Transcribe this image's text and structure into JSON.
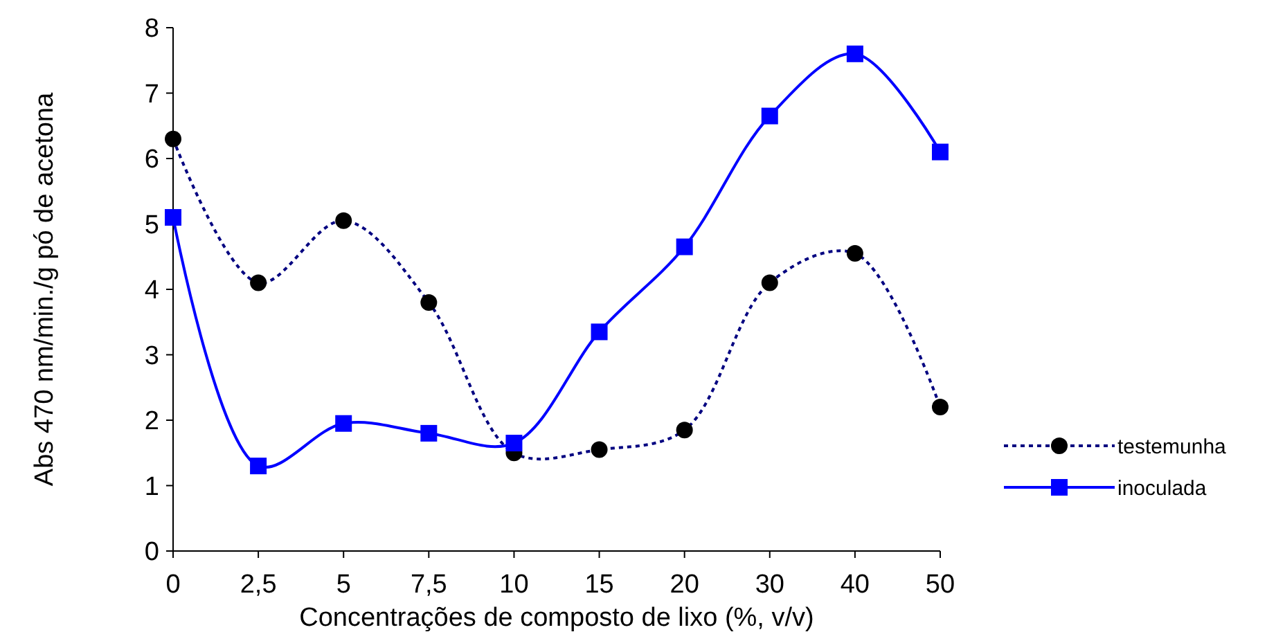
{
  "chart_data": {
    "type": "line",
    "xlabel": "Concentrações de composto de lixo (%, v/v)",
    "ylabel": "Abs 470 nm/min./g pó de acetona",
    "categories": [
      "0",
      "2,5",
      "5",
      "7,5",
      "10",
      "15",
      "20",
      "30",
      "40",
      "50"
    ],
    "ylim": [
      0,
      8
    ],
    "yticks": [
      0,
      1,
      2,
      3,
      4,
      5,
      6,
      7,
      8
    ],
    "grid": false,
    "legend": "right",
    "series": [
      {
        "name": "testemunha",
        "color": "#000080",
        "marker": "circle",
        "line_style": "dotted",
        "values": [
          6.3,
          4.1,
          5.05,
          3.8,
          1.5,
          1.55,
          1.85,
          4.1,
          4.55,
          2.2
        ]
      },
      {
        "name": "inoculada",
        "color": "#0000ff",
        "marker": "square",
        "line_style": "solid",
        "values": [
          5.1,
          1.3,
          1.95,
          1.8,
          1.65,
          3.35,
          4.65,
          6.65,
          7.6,
          6.1
        ]
      }
    ]
  }
}
